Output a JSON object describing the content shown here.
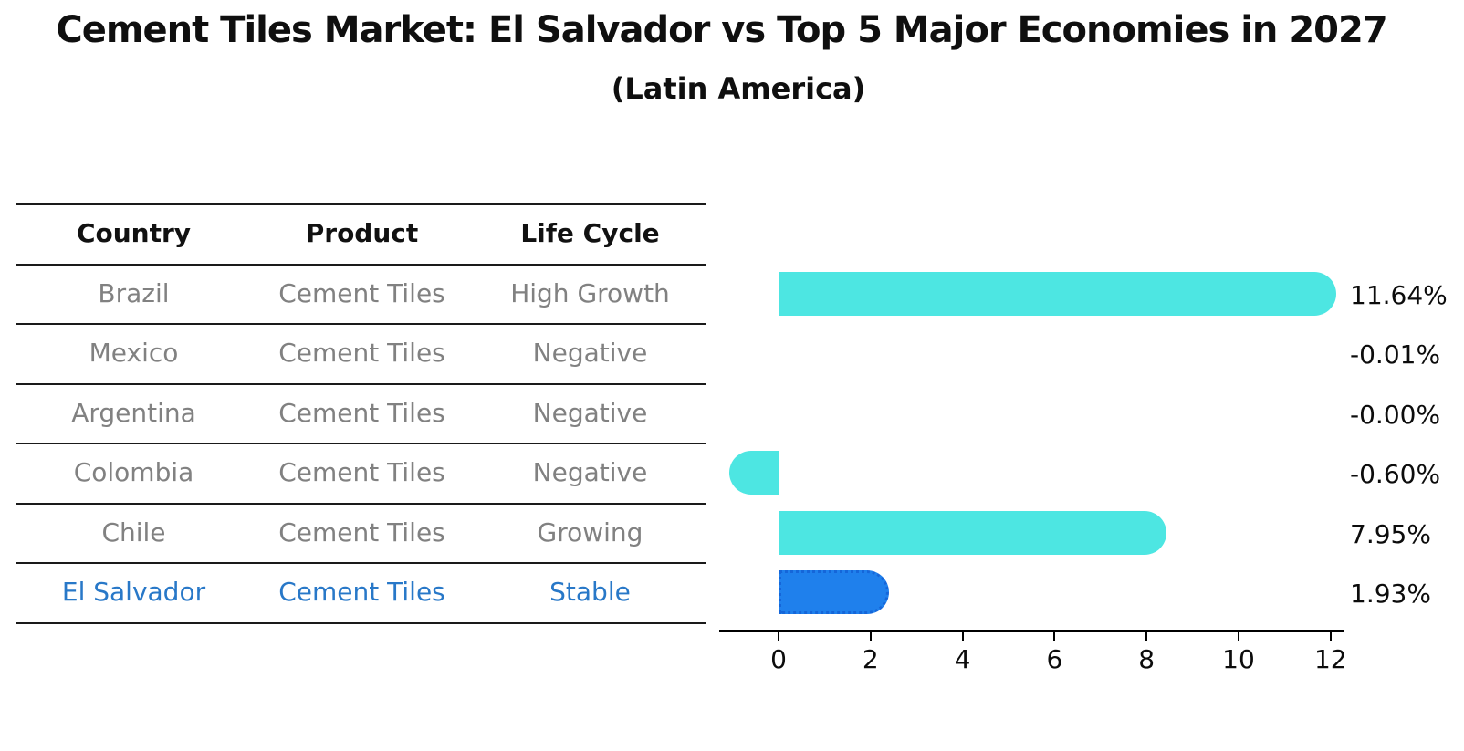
{
  "title": "Cement Tiles Market: El Salvador vs Top 5 Major Economies in 2027",
  "subtitle": "(Latin America)",
  "table": {
    "headers": [
      "Country",
      "Product",
      "Life Cycle"
    ],
    "rows": [
      {
        "country": "Brazil",
        "product": "Cement Tiles",
        "life_cycle": "High Growth",
        "highlight": false
      },
      {
        "country": "Mexico",
        "product": "Cement Tiles",
        "life_cycle": "Negative",
        "highlight": false
      },
      {
        "country": "Argentina",
        "product": "Cement Tiles",
        "life_cycle": "Negative",
        "highlight": false
      },
      {
        "country": "Colombia",
        "product": "Cement Tiles",
        "life_cycle": "Negative",
        "highlight": false
      },
      {
        "country": "Chile",
        "product": "Cement Tiles",
        "life_cycle": "Growing",
        "highlight": false
      },
      {
        "country": "El Salvador",
        "product": "Cement Tiles",
        "life_cycle": "Stable",
        "highlight": true
      }
    ]
  },
  "chart_data": {
    "type": "bar",
    "orientation": "horizontal",
    "title": "Cement Tiles Market: El Salvador vs Top 5 Major Economies in 2027 (Latin America)",
    "categories": [
      "Brazil",
      "Mexico",
      "Argentina",
      "Colombia",
      "Chile",
      "El Salvador"
    ],
    "values": [
      11.64,
      -0.01,
      0.0,
      -0.6,
      7.95,
      1.93
    ],
    "value_labels": [
      "11.64%",
      "-0.01%",
      "-0.00%",
      "-0.60%",
      "7.95%",
      "1.93%"
    ],
    "x_ticks": [
      0,
      2,
      4,
      6,
      8,
      10,
      12
    ],
    "xlim": [
      -1.3,
      12.3
    ],
    "xlabel": "",
    "ylabel": "",
    "grid": false,
    "legend": false,
    "highlight_index": 5
  },
  "colors": {
    "bar": "#4de6e2",
    "highlight_bar": "#1f80ec",
    "highlight_border": "#1566d9",
    "table_text": "#818181",
    "highlight_text": "#2878c8",
    "header_text": "#111111",
    "value_text": "#0c0c0c",
    "line": "#1a1a1a"
  }
}
